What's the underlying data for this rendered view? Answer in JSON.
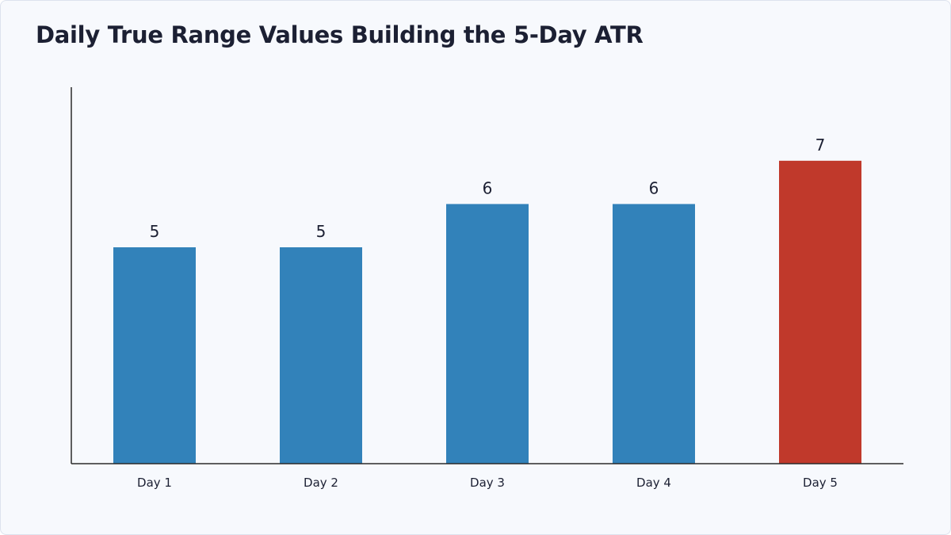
{
  "chart_data": {
    "type": "bar",
    "title": "Daily True Range Values Building the 5-Day ATR",
    "categories": [
      "Day 1",
      "Day 2",
      "Day 3",
      "Day 4",
      "Day 5"
    ],
    "values": [
      5,
      5,
      6,
      6,
      7
    ],
    "data_labels": [
      "5",
      "5",
      "6",
      "6",
      "7"
    ],
    "ylim": [
      0,
      8.7
    ],
    "grid": false,
    "legend": "none",
    "colors": {
      "default_bar": "#3282ba",
      "highlight_bar": "#c0392b",
      "axis": "#2b2b2b"
    },
    "highlight_category": "Day 5"
  }
}
